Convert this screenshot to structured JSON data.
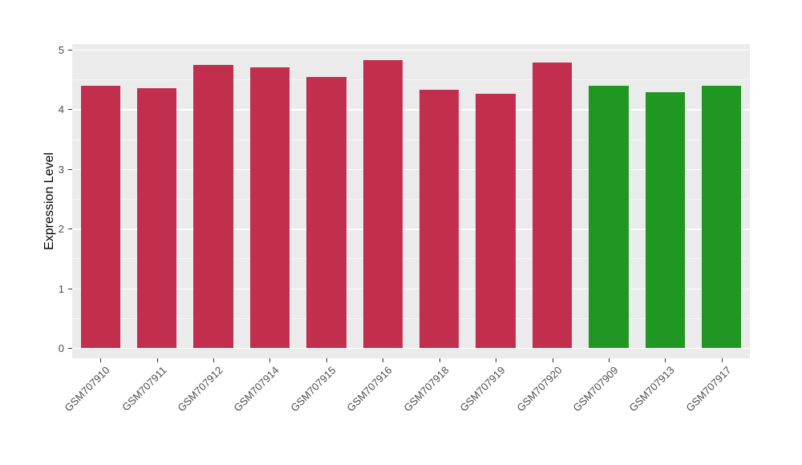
{
  "chart_data": {
    "type": "bar",
    "title": "",
    "xlabel": "",
    "ylabel": "Expression Level",
    "ylim": [
      0,
      5
    ],
    "yticks": [
      0,
      1,
      2,
      3,
      4,
      5
    ],
    "minor_gridlines": [
      0.5,
      1.5,
      2.5,
      3.5,
      4.5
    ],
    "grid": true,
    "legend": false,
    "categories": [
      "GSM707910",
      "GSM707911",
      "GSM707912",
      "GSM707914",
      "GSM707915",
      "GSM707916",
      "GSM707918",
      "GSM707919",
      "GSM707920",
      "GSM707909",
      "GSM707913",
      "GSM707917"
    ],
    "values": [
      4.4,
      4.35,
      4.75,
      4.71,
      4.54,
      4.83,
      4.33,
      4.26,
      4.78,
      4.39,
      4.29,
      4.39
    ],
    "bar_colors": [
      "#C22E4E",
      "#C22E4E",
      "#C22E4E",
      "#C22E4E",
      "#C22E4E",
      "#C22E4E",
      "#C22E4E",
      "#C22E4E",
      "#C22E4E",
      "#1F9722",
      "#1F9722",
      "#1F9722"
    ],
    "colors": {
      "red_group": "#C22E4E",
      "green_group": "#1F9722",
      "panel_background": "#EBEBEB",
      "figure_background": "#FFFFFF",
      "gridline": "#FFFFFF",
      "tick_text": "#4D4D4D",
      "axis_title_text": "#000000"
    }
  }
}
